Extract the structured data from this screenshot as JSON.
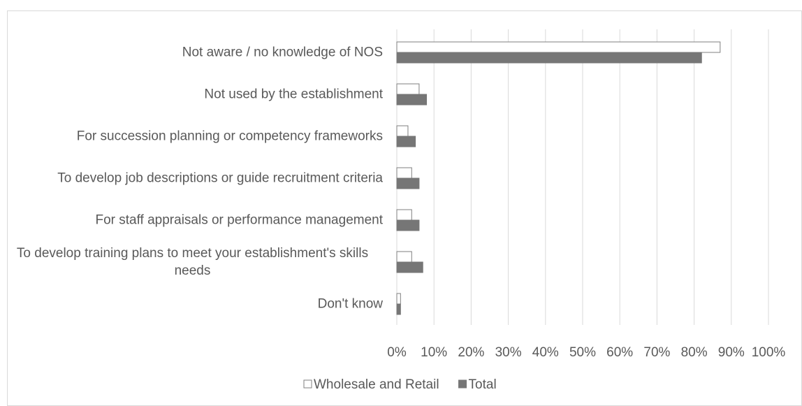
{
  "chart_data": {
    "type": "bar",
    "orientation": "horizontal",
    "categories": [
      "Not aware / no knowledge of NOS",
      "Not used by the establishment",
      "For succession planning or competency frameworks",
      "To develop job descriptions or guide recruitment criteria",
      "For staff appraisals or performance management",
      "To develop training plans to meet your establishment's skills needs",
      "Don't know"
    ],
    "series": [
      {
        "name": "Wholesale and Retail",
        "color": "#ffffff",
        "stroke": "#7f7f7f",
        "values": [
          87,
          6,
          3,
          4,
          4,
          4,
          1
        ]
      },
      {
        "name": "Total",
        "color": "#767676",
        "stroke": "#767676",
        "values": [
          82,
          8,
          5,
          6,
          6,
          7,
          1
        ]
      }
    ],
    "xlim": [
      0,
      100
    ],
    "xticks": [
      {
        "value": 0,
        "label": "0%"
      },
      {
        "value": 10,
        "label": "10%"
      },
      {
        "value": 20,
        "label": "20%"
      },
      {
        "value": 30,
        "label": "30%"
      },
      {
        "value": 40,
        "label": "40%"
      },
      {
        "value": 50,
        "label": "50%"
      },
      {
        "value": 60,
        "label": "60%"
      },
      {
        "value": 70,
        "label": "70%"
      },
      {
        "value": 80,
        "label": "80%"
      },
      {
        "value": 90,
        "label": "90%"
      },
      {
        "value": 100,
        "label": "100%"
      }
    ],
    "grid": true,
    "legend": "bottom"
  }
}
